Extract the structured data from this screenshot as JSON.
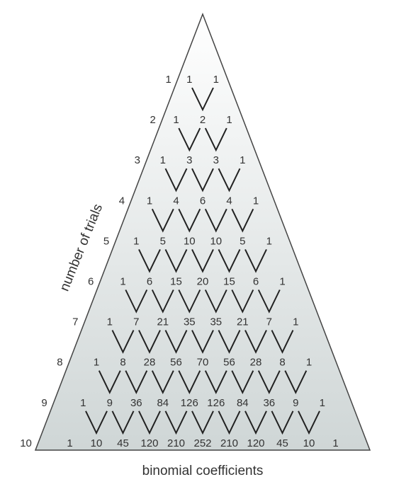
{
  "labels": {
    "y_axis": "number of trials",
    "x_axis": "binomial coefficients"
  },
  "colors": {
    "fill_top": "#ffffff",
    "fill_bottom": "#cfd6d6",
    "outline": "#444444",
    "connector": "#222222",
    "text": "#333333"
  },
  "rows": [
    {
      "trials": "1",
      "coefficients": [
        "1",
        "1"
      ]
    },
    {
      "trials": "2",
      "coefficients": [
        "1",
        "2",
        "1"
      ]
    },
    {
      "trials": "3",
      "coefficients": [
        "1",
        "3",
        "3",
        "1"
      ]
    },
    {
      "trials": "4",
      "coefficients": [
        "1",
        "4",
        "6",
        "4",
        "1"
      ]
    },
    {
      "trials": "5",
      "coefficients": [
        "1",
        "5",
        "10",
        "10",
        "5",
        "1"
      ]
    },
    {
      "trials": "6",
      "coefficients": [
        "1",
        "6",
        "15",
        "20",
        "15",
        "6",
        "1"
      ]
    },
    {
      "trials": "7",
      "coefficients": [
        "1",
        "7",
        "21",
        "35",
        "35",
        "21",
        "7",
        "1"
      ]
    },
    {
      "trials": "8",
      "coefficients": [
        "1",
        "8",
        "28",
        "56",
        "70",
        "56",
        "28",
        "8",
        "1"
      ]
    },
    {
      "trials": "9",
      "coefficients": [
        "1",
        "9",
        "36",
        "84",
        "126",
        "126",
        "84",
        "36",
        "9",
        "1"
      ]
    },
    {
      "trials": "10",
      "coefficients": [
        "1",
        "10",
        "45",
        "120",
        "210",
        "252",
        "210",
        "120",
        "45",
        "10",
        "1"
      ]
    }
  ]
}
